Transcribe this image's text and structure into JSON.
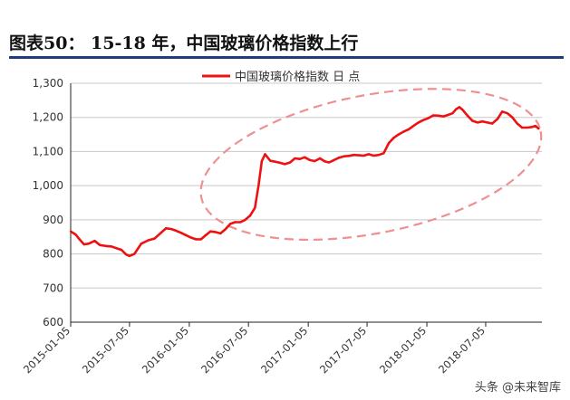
{
  "figure_title": "图表50： 15-18 年，中国玻璃价格指数上行",
  "watermark": "头条 @未来智库",
  "colors": {
    "title_rule": "#1f3d7a",
    "series": "#ee1111",
    "ellipse": "#ee9090",
    "grid": "#c8c8c8",
    "axis": "#222222",
    "text": "#333333"
  },
  "chart_data": {
    "type": "line",
    "title": "",
    "xlabel": "",
    "ylabel": "",
    "ylim": [
      600,
      1300
    ],
    "yticks": [
      600,
      700,
      800,
      900,
      1000,
      1100,
      1200,
      1300
    ],
    "ytick_labels": [
      "600",
      "700",
      "800",
      "900",
      "1,000",
      "1,100",
      "1,200",
      "1,300"
    ],
    "xticks": [
      "2015-01-05",
      "2015-07-05",
      "2016-01-05",
      "2016-07-05",
      "2017-01-05",
      "2017-07-05",
      "2018-01-05",
      "2018-07-05"
    ],
    "grid": "horizontal",
    "legend": "top-center",
    "series": [
      {
        "name": "中国玻璃价格指数 日 点",
        "points": [
          [
            "2015-01-05",
            866
          ],
          [
            "2015-01-20",
            857
          ],
          [
            "2015-02-01",
            843
          ],
          [
            "2015-02-15",
            828
          ],
          [
            "2015-03-01",
            830
          ],
          [
            "2015-03-20",
            838
          ],
          [
            "2015-04-05",
            826
          ],
          [
            "2015-04-25",
            823
          ],
          [
            "2015-05-10",
            822
          ],
          [
            "2015-05-25",
            817
          ],
          [
            "2015-06-10",
            812
          ],
          [
            "2015-06-25",
            798
          ],
          [
            "2015-07-05",
            794
          ],
          [
            "2015-07-20",
            800
          ],
          [
            "2015-08-10",
            830
          ],
          [
            "2015-09-01",
            840
          ],
          [
            "2015-09-20",
            845
          ],
          [
            "2015-10-10",
            862
          ],
          [
            "2015-10-25",
            875
          ],
          [
            "2015-11-10",
            873
          ],
          [
            "2015-11-25",
            868
          ],
          [
            "2015-12-10",
            862
          ],
          [
            "2015-12-25",
            855
          ],
          [
            "2016-01-10",
            848
          ],
          [
            "2016-01-25",
            843
          ],
          [
            "2016-02-10",
            843
          ],
          [
            "2016-02-25",
            855
          ],
          [
            "2016-03-10",
            866
          ],
          [
            "2016-03-25",
            864
          ],
          [
            "2016-04-10",
            860
          ],
          [
            "2016-04-25",
            872
          ],
          [
            "2016-05-10",
            888
          ],
          [
            "2016-05-25",
            893
          ],
          [
            "2016-06-10",
            893
          ],
          [
            "2016-06-25",
            900
          ],
          [
            "2016-07-10",
            912
          ],
          [
            "2016-07-25",
            935
          ],
          [
            "2016-08-05",
            1000
          ],
          [
            "2016-08-15",
            1072
          ],
          [
            "2016-08-25",
            1092
          ],
          [
            "2016-09-10",
            1073
          ],
          [
            "2016-09-25",
            1070
          ],
          [
            "2016-10-10",
            1067
          ],
          [
            "2016-10-25",
            1063
          ],
          [
            "2016-11-10",
            1068
          ],
          [
            "2016-11-25",
            1080
          ],
          [
            "2016-12-10",
            1078
          ],
          [
            "2016-12-25",
            1083
          ],
          [
            "2017-01-10",
            1075
          ],
          [
            "2017-01-25",
            1072
          ],
          [
            "2017-02-10",
            1080
          ],
          [
            "2017-02-25",
            1071
          ],
          [
            "2017-03-10",
            1068
          ],
          [
            "2017-03-25",
            1075
          ],
          [
            "2017-04-10",
            1082
          ],
          [
            "2017-04-25",
            1086
          ],
          [
            "2017-05-10",
            1087
          ],
          [
            "2017-05-25",
            1090
          ],
          [
            "2017-06-10",
            1089
          ],
          [
            "2017-06-25",
            1088
          ],
          [
            "2017-07-10",
            1092
          ],
          [
            "2017-07-25",
            1088
          ],
          [
            "2017-08-10",
            1090
          ],
          [
            "2017-08-25",
            1095
          ],
          [
            "2017-09-10",
            1125
          ],
          [
            "2017-09-25",
            1140
          ],
          [
            "2017-10-10",
            1150
          ],
          [
            "2017-10-25",
            1158
          ],
          [
            "2017-11-10",
            1165
          ],
          [
            "2017-11-25",
            1175
          ],
          [
            "2017-12-10",
            1185
          ],
          [
            "2017-12-25",
            1192
          ],
          [
            "2018-01-10",
            1198
          ],
          [
            "2018-01-25",
            1206
          ],
          [
            "2018-02-10",
            1205
          ],
          [
            "2018-02-25",
            1203
          ],
          [
            "2018-03-10",
            1207
          ],
          [
            "2018-03-25",
            1212
          ],
          [
            "2018-04-05",
            1224
          ],
          [
            "2018-04-15",
            1230
          ],
          [
            "2018-04-25",
            1222
          ],
          [
            "2018-05-10",
            1205
          ],
          [
            "2018-05-25",
            1190
          ],
          [
            "2018-06-10",
            1185
          ],
          [
            "2018-06-25",
            1188
          ],
          [
            "2018-07-10",
            1185
          ],
          [
            "2018-07-25",
            1182
          ],
          [
            "2018-08-10",
            1195
          ],
          [
            "2018-08-25",
            1217
          ],
          [
            "2018-09-10",
            1212
          ],
          [
            "2018-09-25",
            1200
          ],
          [
            "2018-10-10",
            1182
          ],
          [
            "2018-10-25",
            1170
          ],
          [
            "2018-11-10",
            1170
          ],
          [
            "2018-11-25",
            1172
          ],
          [
            "2018-12-05",
            1175
          ],
          [
            "2018-12-15",
            1167
          ]
        ]
      }
    ],
    "annotations": [
      {
        "type": "dashed-ellipse",
        "from": "2016-02-01",
        "to": "2018-12-31",
        "low": 860,
        "high": 1265
      }
    ]
  }
}
